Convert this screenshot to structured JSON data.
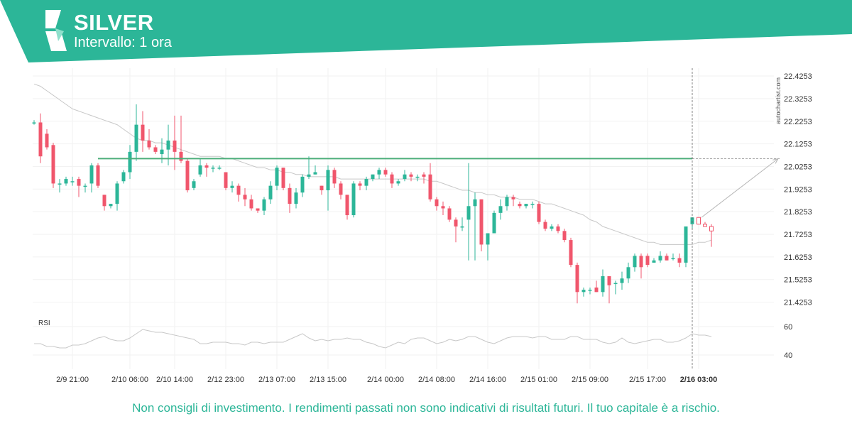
{
  "header": {
    "title": "SILVER",
    "subtitle": "Intervallo: 1 ora"
  },
  "disclaimer": "Non consigli di investimento. I rendimenti passati non sono indicativi di risultati futuri. Il tuo capitale è a rischio.",
  "watermark": "autochartist.com",
  "colors": {
    "brand": "#2cb698",
    "brand_light": "#8fe0cc",
    "up": "#2cb698",
    "down": "#f0566c",
    "level_line": "#4cae7a",
    "moving_average": "#c8c8c8",
    "rsi_line": "#c8c8c8",
    "grid": "#f2f2f2"
  },
  "icons": [
    "autochartist-logo-icon"
  ],
  "chart_data": {
    "type": "candlestick",
    "title": "SILVER",
    "subtitle": "Intervallo: 1 ora",
    "grid": true,
    "ylim": [
      21.38,
      22.46
    ],
    "y_ticks": [
      "22.4253",
      "22.3253",
      "22.2253",
      "22.1253",
      "22.0253",
      "21.9253",
      "21.8253",
      "21.7253",
      "21.6253",
      "21.5253",
      "21.4253"
    ],
    "x_ticks": [
      "2/9 21:00",
      "2/10 06:00",
      "2/10 14:00",
      "2/12 23:00",
      "2/13 07:00",
      "2/13 15:00",
      "2/14 00:00",
      "2/14 08:00",
      "2/14 16:00",
      "2/15 01:00",
      "2/15 09:00",
      "2/15 17:00",
      "2/16 03:00"
    ],
    "highlighted_x_tick": "2/16 03:00",
    "resistance_level": 22.06,
    "series": [
      {
        "type": "candlestick",
        "candles": [
          {
            "o": 22.22,
            "h": 22.23,
            "l": 22.21,
            "c": 22.22
          },
          {
            "o": 22.22,
            "h": 22.26,
            "l": 22.04,
            "c": 22.07
          },
          {
            "o": 22.17,
            "h": 22.19,
            "l": 22.1,
            "c": 22.11
          },
          {
            "o": 22.12,
            "h": 22.13,
            "l": 21.93,
            "c": 21.95
          },
          {
            "o": 21.95,
            "h": 21.97,
            "l": 21.91,
            "c": 21.95
          },
          {
            "o": 21.95,
            "h": 21.98,
            "l": 21.94,
            "c": 21.97
          },
          {
            "o": 21.96,
            "h": 21.98,
            "l": 21.94,
            "c": 21.96
          },
          {
            "o": 21.97,
            "h": 21.98,
            "l": 21.89,
            "c": 21.94
          },
          {
            "o": 21.94,
            "h": 21.95,
            "l": 21.91,
            "c": 21.94
          },
          {
            "o": 21.95,
            "h": 22.04,
            "l": 21.91,
            "c": 22.03
          },
          {
            "o": 22.03,
            "h": 22.04,
            "l": 21.93,
            "c": 21.94
          },
          {
            "o": 21.9,
            "h": 21.9,
            "l": 21.83,
            "c": 21.85
          },
          {
            "o": 21.85,
            "h": 21.86,
            "l": 21.84,
            "c": 21.86
          },
          {
            "o": 21.86,
            "h": 21.96,
            "l": 21.83,
            "c": 21.95
          },
          {
            "o": 21.96,
            "h": 22.01,
            "l": 21.95,
            "c": 22.0
          },
          {
            "o": 22.0,
            "h": 22.12,
            "l": 21.97,
            "c": 22.09
          },
          {
            "o": 22.09,
            "h": 22.3,
            "l": 22.05,
            "c": 22.21
          },
          {
            "o": 22.21,
            "h": 22.27,
            "l": 22.09,
            "c": 22.14
          },
          {
            "o": 22.14,
            "h": 22.19,
            "l": 22.1,
            "c": 22.11
          },
          {
            "o": 22.11,
            "h": 22.12,
            "l": 22.08,
            "c": 22.09
          },
          {
            "o": 22.08,
            "h": 22.15,
            "l": 22.04,
            "c": 22.1
          },
          {
            "o": 22.1,
            "h": 22.21,
            "l": 22.03,
            "c": 22.14
          },
          {
            "o": 22.14,
            "h": 22.25,
            "l": 22.01,
            "c": 22.09
          },
          {
            "o": 22.09,
            "h": 22.25,
            "l": 22.04,
            "c": 22.05
          },
          {
            "o": 22.05,
            "h": 22.06,
            "l": 21.91,
            "c": 21.92
          },
          {
            "o": 21.93,
            "h": 21.97,
            "l": 21.92,
            "c": 21.96
          },
          {
            "o": 21.99,
            "h": 22.06,
            "l": 21.98,
            "c": 22.03
          },
          {
            "o": 22.03,
            "h": 22.04,
            "l": 21.98,
            "c": 22.02
          },
          {
            "o": 22.02,
            "h": 22.03,
            "l": 22.0,
            "c": 22.02
          },
          {
            "o": 22.02,
            "h": 22.03,
            "l": 22.01,
            "c": 22.02
          },
          {
            "o": 22.0,
            "h": 22.0,
            "l": 21.92,
            "c": 21.93
          },
          {
            "o": 21.93,
            "h": 21.96,
            "l": 21.91,
            "c": 21.94
          },
          {
            "o": 21.94,
            "h": 21.95,
            "l": 21.87,
            "c": 21.9
          },
          {
            "o": 21.9,
            "h": 21.93,
            "l": 21.85,
            "c": 21.88
          },
          {
            "o": 21.88,
            "h": 21.9,
            "l": 21.83,
            "c": 21.84
          },
          {
            "o": 21.84,
            "h": 21.84,
            "l": 21.82,
            "c": 21.83
          },
          {
            "o": 21.83,
            "h": 21.89,
            "l": 21.81,
            "c": 21.88
          },
          {
            "o": 21.88,
            "h": 21.96,
            "l": 21.86,
            "c": 21.94
          },
          {
            "o": 21.94,
            "h": 22.03,
            "l": 21.92,
            "c": 22.02
          },
          {
            "o": 22.02,
            "h": 22.02,
            "l": 21.92,
            "c": 21.93
          },
          {
            "o": 21.93,
            "h": 21.95,
            "l": 21.82,
            "c": 21.86
          },
          {
            "o": 21.86,
            "h": 21.93,
            "l": 21.84,
            "c": 21.91
          },
          {
            "o": 21.91,
            "h": 21.99,
            "l": 21.89,
            "c": 21.98
          },
          {
            "o": 21.98,
            "h": 22.07,
            "l": 21.97,
            "c": 21.99
          },
          {
            "o": 21.99,
            "h": 22.03,
            "l": 21.99,
            "c": 22.0
          },
          {
            "o": 21.94,
            "h": 21.94,
            "l": 21.9,
            "c": 21.92
          },
          {
            "o": 21.92,
            "h": 22.03,
            "l": 21.83,
            "c": 22.01
          },
          {
            "o": 22.01,
            "h": 22.02,
            "l": 21.93,
            "c": 21.95
          },
          {
            "o": 21.95,
            "h": 21.96,
            "l": 21.88,
            "c": 21.9
          },
          {
            "o": 21.9,
            "h": 21.9,
            "l": 21.79,
            "c": 21.81
          },
          {
            "o": 21.81,
            "h": 21.96,
            "l": 21.8,
            "c": 21.95
          },
          {
            "o": 21.95,
            "h": 21.96,
            "l": 21.92,
            "c": 21.94
          },
          {
            "o": 21.94,
            "h": 21.98,
            "l": 21.92,
            "c": 21.97
          },
          {
            "o": 21.97,
            "h": 21.99,
            "l": 21.96,
            "c": 21.99
          },
          {
            "o": 21.99,
            "h": 22.02,
            "l": 21.97,
            "c": 22.01
          },
          {
            "o": 22.01,
            "h": 22.02,
            "l": 21.98,
            "c": 21.99
          },
          {
            "o": 21.99,
            "h": 22.0,
            "l": 21.93,
            "c": 21.95
          },
          {
            "o": 21.95,
            "h": 21.97,
            "l": 21.94,
            "c": 21.96
          },
          {
            "o": 21.97,
            "h": 22.01,
            "l": 21.96,
            "c": 21.99
          },
          {
            "o": 21.99,
            "h": 22.0,
            "l": 21.96,
            "c": 21.98
          },
          {
            "o": 21.98,
            "h": 21.99,
            "l": 21.96,
            "c": 21.98
          },
          {
            "o": 21.99,
            "h": 22.0,
            "l": 21.95,
            "c": 21.98
          },
          {
            "o": 21.99,
            "h": 22.04,
            "l": 21.87,
            "c": 21.88
          },
          {
            "o": 21.88,
            "h": 21.89,
            "l": 21.83,
            "c": 21.85
          },
          {
            "o": 21.85,
            "h": 21.87,
            "l": 21.81,
            "c": 21.84
          },
          {
            "o": 21.84,
            "h": 21.85,
            "l": 21.78,
            "c": 21.79
          },
          {
            "o": 21.79,
            "h": 21.8,
            "l": 21.69,
            "c": 21.76
          },
          {
            "o": 21.76,
            "h": 21.8,
            "l": 21.74,
            "c": 21.76
          },
          {
            "o": 21.79,
            "h": 22.04,
            "l": 21.61,
            "c": 21.85
          },
          {
            "o": 21.85,
            "h": 21.91,
            "l": 21.61,
            "c": 21.88
          },
          {
            "o": 21.88,
            "h": 21.88,
            "l": 21.65,
            "c": 21.68
          },
          {
            "o": 21.68,
            "h": 21.73,
            "l": 21.61,
            "c": 21.73
          },
          {
            "o": 21.73,
            "h": 21.83,
            "l": 21.73,
            "c": 21.82
          },
          {
            "o": 21.82,
            "h": 21.88,
            "l": 21.79,
            "c": 21.85
          },
          {
            "o": 21.85,
            "h": 21.9,
            "l": 21.83,
            "c": 21.89
          },
          {
            "o": 21.89,
            "h": 21.9,
            "l": 21.85,
            "c": 21.88
          },
          {
            "o": 21.86,
            "h": 21.87,
            "l": 21.84,
            "c": 21.85
          },
          {
            "o": 21.85,
            "h": 21.86,
            "l": 21.84,
            "c": 21.86
          },
          {
            "o": 21.86,
            "h": 21.87,
            "l": 21.84,
            "c": 21.86
          },
          {
            "o": 21.86,
            "h": 21.87,
            "l": 21.77,
            "c": 21.78
          },
          {
            "o": 21.78,
            "h": 21.79,
            "l": 21.74,
            "c": 21.75
          },
          {
            "o": 21.75,
            "h": 21.77,
            "l": 21.74,
            "c": 21.76
          },
          {
            "o": 21.76,
            "h": 21.77,
            "l": 21.73,
            "c": 21.74
          },
          {
            "o": 21.74,
            "h": 21.75,
            "l": 21.69,
            "c": 21.7
          },
          {
            "o": 21.7,
            "h": 21.71,
            "l": 21.58,
            "c": 21.59
          },
          {
            "o": 21.59,
            "h": 21.6,
            "l": 21.42,
            "c": 21.47
          },
          {
            "o": 21.47,
            "h": 21.49,
            "l": 21.45,
            "c": 21.48
          },
          {
            "o": 21.48,
            "h": 21.49,
            "l": 21.46,
            "c": 21.48
          },
          {
            "o": 21.49,
            "h": 21.52,
            "l": 21.47,
            "c": 21.47
          },
          {
            "o": 21.47,
            "h": 21.57,
            "l": 21.45,
            "c": 21.54
          },
          {
            "o": 21.54,
            "h": 21.54,
            "l": 21.42,
            "c": 21.5
          },
          {
            "o": 21.51,
            "h": 21.52,
            "l": 21.46,
            "c": 21.51
          },
          {
            "o": 21.51,
            "h": 21.56,
            "l": 21.48,
            "c": 21.53
          },
          {
            "o": 21.53,
            "h": 21.6,
            "l": 21.51,
            "c": 21.58
          },
          {
            "o": 21.58,
            "h": 21.64,
            "l": 21.56,
            "c": 21.63
          },
          {
            "o": 21.63,
            "h": 21.64,
            "l": 21.53,
            "c": 21.58
          },
          {
            "o": 21.63,
            "h": 21.64,
            "l": 21.58,
            "c": 21.59
          },
          {
            "o": 21.6,
            "h": 21.62,
            "l": 21.6,
            "c": 21.61
          },
          {
            "o": 21.61,
            "h": 21.65,
            "l": 21.6,
            "c": 21.63
          },
          {
            "o": 21.63,
            "h": 21.64,
            "l": 21.61,
            "c": 21.61
          },
          {
            "o": 21.62,
            "h": 21.64,
            "l": 21.61,
            "c": 21.62
          },
          {
            "o": 21.62,
            "h": 21.64,
            "l": 21.58,
            "c": 21.6
          },
          {
            "o": 21.6,
            "h": 21.76,
            "l": 21.58,
            "c": 21.76
          },
          {
            "o": 21.77,
            "h": 21.8,
            "l": 21.75,
            "c": 21.8
          },
          {
            "o": 21.8,
            "h": 21.8,
            "l": 21.77,
            "c": 21.77
          },
          {
            "o": 21.77,
            "h": 21.78,
            "l": 21.76,
            "c": 21.76
          },
          {
            "o": 21.76,
            "h": 21.77,
            "l": 21.67,
            "c": 21.74
          }
        ]
      },
      {
        "name": "",
        "type": "line",
        "values": [
          22.39,
          22.38,
          22.36,
          22.34,
          22.32,
          22.3,
          22.28,
          22.27,
          22.26,
          22.25,
          22.24,
          22.23,
          22.22,
          22.21,
          22.19,
          22.17,
          22.15,
          22.14,
          22.14,
          22.13,
          22.13,
          22.12,
          22.11,
          22.1,
          22.09,
          22.08,
          22.07,
          22.07,
          22.07,
          22.07,
          22.06,
          22.06,
          22.05,
          22.04,
          22.03,
          22.02,
          22.02,
          22.01,
          22.01,
          22.0,
          22.0,
          21.99,
          21.99,
          21.98,
          21.98,
          21.98,
          21.98,
          21.98,
          21.97,
          21.97,
          21.97,
          21.97,
          21.97,
          21.97,
          21.97,
          21.97,
          21.97,
          21.97,
          21.97,
          21.97,
          21.97,
          21.97,
          21.96,
          21.96,
          21.95,
          21.94,
          21.93,
          21.92,
          21.92,
          21.91,
          21.91,
          21.9,
          21.9,
          21.89,
          21.89,
          21.89,
          21.88,
          21.88,
          21.88,
          21.87,
          21.86,
          21.86,
          21.85,
          21.84,
          21.83,
          21.82,
          21.81,
          21.79,
          21.78,
          21.76,
          21.75,
          21.74,
          21.73,
          21.72,
          21.71,
          21.7,
          21.69,
          21.69,
          21.68,
          21.68,
          21.68,
          21.68,
          21.68,
          21.68,
          21.69,
          21.69,
          21.7
        ]
      }
    ],
    "projection": {
      "from_price": 21.8,
      "to_price": 22.06
    },
    "rsi": {
      "label": "RSI",
      "y_ticks": [
        "60",
        "40"
      ],
      "ylim": [
        30,
        70
      ],
      "values": [
        48,
        48,
        46,
        46,
        45,
        45,
        47,
        47,
        48,
        50,
        52,
        53,
        51,
        50,
        50,
        52,
        55,
        58,
        57,
        56,
        56,
        55,
        54,
        53,
        52,
        51,
        48,
        48,
        49,
        49,
        49,
        48,
        48,
        47,
        49,
        49,
        48,
        49,
        49,
        49,
        51,
        53,
        55,
        52,
        50,
        51,
        50,
        51,
        51,
        52,
        51,
        51,
        49,
        48,
        46,
        45,
        47,
        49,
        48,
        51,
        52,
        52,
        50,
        48,
        49,
        51,
        50,
        51,
        53,
        53,
        51,
        49,
        48,
        50,
        52,
        53,
        53,
        53,
        52,
        53,
        53,
        51,
        51,
        51,
        53,
        53,
        51,
        51,
        51,
        49,
        48,
        49,
        52,
        49,
        48,
        49,
        50,
        51,
        51,
        49,
        49,
        50,
        52,
        55,
        54,
        54,
        53
      ]
    }
  }
}
